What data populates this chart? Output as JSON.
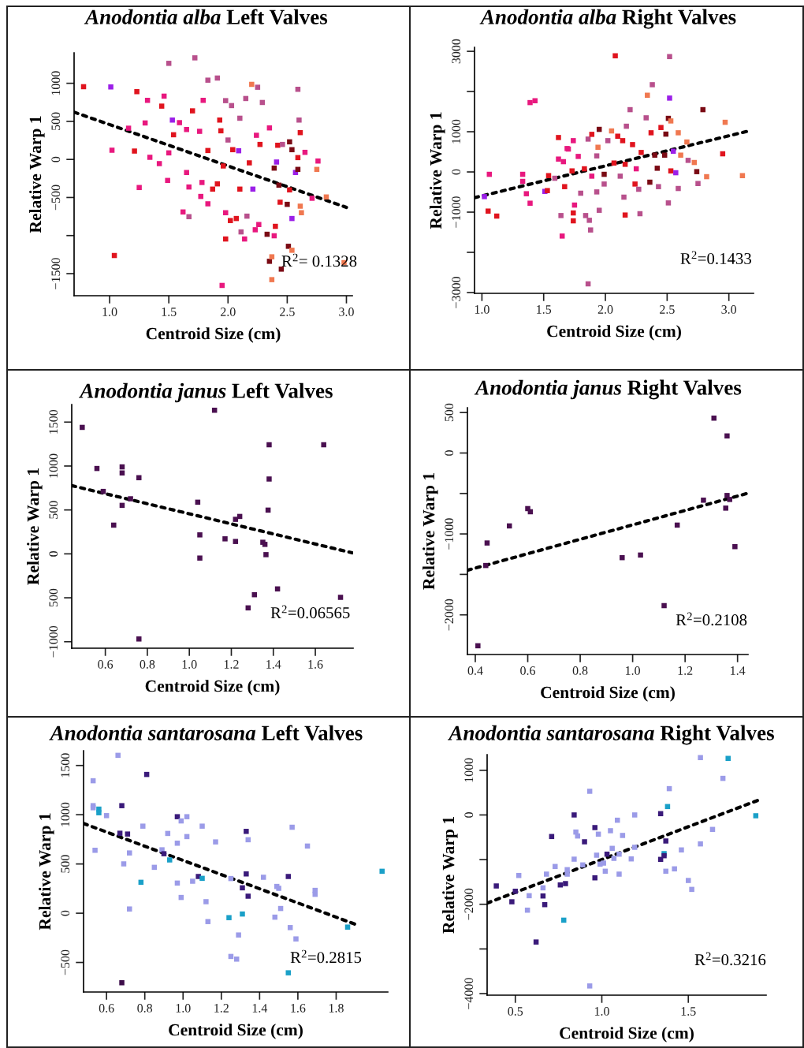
{
  "chart_data": [
    {
      "type": "scatter",
      "title": "Anodontia alba Left Valves",
      "xlabel": "Centroid Size (cm)",
      "ylabel": "Relative Warp 1",
      "marker": "square",
      "xlim": [
        0.7,
        3.05
      ],
      "ylim": [
        -1790,
        1400
      ],
      "xticks": [
        {
          "value": 1,
          "label": "1.0"
        },
        1.5,
        {
          "value": 2,
          "label": "2.0"
        },
        2.5,
        {
          "value": 3,
          "label": "3.0"
        }
      ],
      "yticks": [
        {
          "value": -1500,
          "label": "−1500"
        },
        {
          "value": -1000,
          "label": null
        },
        {
          "value": -500,
          "label": "−500"
        },
        0,
        500,
        1000
      ],
      "annotations": [
        "R$^{2}$= 0.1328"
      ],
      "series": [
        {
          "x": [
            0.78,
            1.01,
            1.02,
            1.04,
            1.23,
            1.21,
            1.16,
            1.25,
            1.32,
            1.3,
            1.34,
            1.42,
            1.46,
            1.44,
            1.5,
            1.49,
            1.53,
            1.54,
            1.5,
            1.59,
            1.65,
            1.65,
            1.67,
            1.62,
            1.67,
            1.7,
            1.72,
            1.79,
            1.76,
            1.83,
            1.91,
            1.83,
            1.78,
            1.77,
            1.83,
            1.87,
            1.93,
            1.94,
            1.96,
            1.91,
            1.98,
            1.98,
            1.95,
            1.98,
            2.03,
            2.0,
            2.04,
            2.02,
            2.07,
            2.1,
            2.09,
            2.1,
            2.11,
            2.14,
            2.16,
            2.15,
            2.2,
            2.25,
            2.18,
            2.21,
            2.24,
            2.27,
            2.29,
            2.23,
            2.26,
            2.35,
            2.33,
            2.35,
            2.37,
            2.37,
            2.39,
            2.41,
            2.39,
            2.4,
            2.42,
            2.43,
            2.45,
            2.44,
            2.46,
            2.5,
            2.52,
            2.54,
            2.52,
            2.51,
            2.54,
            2.54,
            2.57,
            2.59,
            2.6,
            2.59,
            2.59,
            2.61,
            2.61,
            2.62,
            2.65,
            2.71,
            2.75,
            2.76,
            2.83,
            2.98
          ],
          "values": [
            955,
            952,
            121,
            -1262,
            890,
            110,
            410,
            -369,
            776,
            479,
            28,
            -55,
            831,
            700,
            1262,
            -276,
            517,
            324,
            86,
            483,
            393,
            -172,
            -362,
            -690,
            -752,
            638,
            1334,
            776,
            369,
            1041,
            1069,
            117,
            -303,
            -486,
            -583,
            -390,
            517,
            376,
            -86,
            -321,
            772,
            -1045,
            -1655,
            -700,
            707,
            255,
            128,
            -803,
            -776,
            541,
            114,
            -390,
            -952,
            -1045,
            -745,
            800,
            986,
            948,
            -45,
            -390,
            317,
            197,
            748,
            -924,
            -855,
            414,
            -983,
            -1338,
            -1279,
            -1579,
            -114,
            -34,
            -1003,
            -879,
            186,
            -338,
            -1441,
            -562,
            197,
            -590,
            -400,
            128,
            231,
            -1141,
            -1193,
            -776,
            -172,
            921,
            517,
            24,
            -131,
            352,
            -614,
            -700,
            93,
            -510,
            -131,
            -21,
            -493,
            -1355
          ],
          "colors": [
            "#e0141e",
            "#9b1fe8",
            "#e8187e",
            "#e0141e",
            "#e0141e",
            "#e0141e",
            "#e8187e",
            "#e8187e",
            "#e8187e",
            "#e8187e",
            "#e8187e",
            "#e8187e",
            "#e8187e",
            "#e0141e",
            "#b8508c",
            "#e8187e",
            "#9b1fe8",
            "#e0141e",
            "#e8187e",
            "#e8187e",
            "#e8187e",
            "#e8187e",
            "#e8187e",
            "#e8187e",
            "#b8508c",
            "#e0141e",
            "#b8508c",
            "#e8187e",
            "#e8187e",
            "#b8508c",
            "#b8508c",
            "#e0141e",
            "#e8187e",
            "#e8187e",
            "#e8187e",
            "#e0141e",
            "#e0141e",
            "#e0141e",
            "#e0141e",
            "#e0141e",
            "#b8508c",
            "#e0141e",
            "#e8187e",
            "#e8187e",
            "#b8508c",
            "#b8508c",
            "#e0141e",
            "#e0141e",
            "#e0141e",
            "#b8508c",
            "#9b1fe8",
            "#e0141e",
            "#b8508c",
            "#e8187e",
            "#b8508c",
            "#b8508c",
            "#f07850",
            "#b8508c",
            "#e0141e",
            "#9b1fe8",
            "#e8187e",
            "#e0141e",
            "#b8508c",
            "#e8187e",
            "#e8187e",
            "#e8187e",
            "#7a0a14",
            "#7a0a14",
            "#f07850",
            "#f07850",
            "#7a0a14",
            "#9b1fe8",
            "#e8187e",
            "#e0141e",
            "#e0141e",
            "#7a0a14",
            "#7a0a14",
            "#e0141e",
            "#b8508c",
            "#7a0a14",
            "#e0141e",
            "#7a0a14",
            "#7a0a14",
            "#7a0a14",
            "#f07850",
            "#9b1fe8",
            "#9b1fe8",
            "#b8508c",
            "#b8508c",
            "#e0141e",
            "#7a0a14",
            "#e0141e",
            "#f07850",
            "#f07850",
            "#e8187e",
            "#e8187e",
            "#f07850",
            "#e8187e",
            "#f07850",
            "#f07850"
          ]
        },
        {
          "type": "line",
          "x": [
            0.7,
            3.0
          ],
          "values": [
            621,
            -630
          ],
          "color": "#000000",
          "line_style": "dashed",
          "marker": "none"
        }
      ]
    },
    {
      "type": "scatter",
      "title": "Anodontia alba Right Valves",
      "xlabel": "Centroid Size (cm)",
      "ylabel": "Relative Warp 1",
      "marker": "square",
      "xlim": [
        0.94,
        3.2
      ],
      "ylim": [
        -3020,
        3100
      ],
      "xticks": [
        {
          "value": 1,
          "label": "1.0"
        },
        1.5,
        {
          "value": 2,
          "label": "2.0"
        },
        2.5,
        {
          "value": 3,
          "label": "3.0"
        }
      ],
      "yticks": [
        {
          "value": -3000,
          "label": "−3000"
        },
        {
          "value": -2000,
          "label": null
        },
        {
          "value": -1000,
          "label": "−1000"
        },
        0,
        1000,
        {
          "value": 2000,
          "label": null
        },
        3000
      ],
      "annotations": [
        "R$^{2}$=0.1433"
      ],
      "series": [
        {
          "x": [
            1.02,
            1.06,
            1.05,
            1.12,
            1.33,
            1.33,
            1.36,
            1.39,
            1.39,
            1.43,
            1.51,
            1.54,
            1.53,
            1.59,
            1.62,
            1.62,
            1.64,
            1.65,
            1.66,
            1.67,
            1.69,
            1.7,
            1.74,
            1.73,
            1.74,
            1.74,
            1.75,
            1.78,
            1.8,
            1.83,
            1.84,
            1.86,
            1.86,
            1.87,
            1.88,
            1.89,
            1.89,
            1.93,
            1.93,
            1.95,
            1.95,
            1.94,
            1.99,
            1.99,
            2.02,
            2.05,
            2.07,
            2.08,
            2.1,
            2.12,
            2.14,
            2.15,
            2.16,
            2.16,
            2.17,
            2.2,
            2.22,
            2.24,
            2.25,
            2.27,
            2.28,
            2.29,
            2.33,
            2.34,
            2.36,
            2.38,
            2.37,
            2.4,
            2.42,
            2.43,
            2.45,
            2.48,
            2.49,
            2.51,
            2.52,
            2.52,
            2.51,
            2.53,
            2.53,
            2.57,
            2.59,
            2.55,
            2.59,
            2.61,
            2.66,
            2.67,
            2.72,
            2.74,
            2.75,
            2.79,
            2.82,
            2.95,
            2.97,
            3.11
          ],
          "values": [
            -614,
            -59,
            -974,
            -1098,
            -59,
            -235,
            -542,
            -778,
            1725,
            1771,
            -484,
            -92,
            -464,
            -157,
            856,
            320,
            -1085,
            -1595,
            255,
            -366,
            582,
            569,
            778,
            26,
            -1020,
            -1216,
            -824,
            386,
            -529,
            78,
            -1085,
            817,
            -2784,
            -1203,
            -1444,
            935,
            -105,
            399,
            -497,
            -954,
            1059,
            614,
            -59,
            -301,
            778,
            1020,
            222,
            2889,
            889,
            -105,
            778,
            -627,
            -1072,
            190,
            1137,
            1549,
            680,
            -301,
            78,
            -431,
            -1039,
            484,
            1346,
            1908,
            -255,
            2170,
            974,
            418,
            92,
            -366,
            1105,
            418,
            941,
            1333,
            1837,
            2869,
            -771,
            26,
            1268,
            -20,
            -412,
            516,
            974,
            418,
            745,
            288,
            235,
            7,
            -288,
            1549,
            -118,
            451,
            1235,
            -92
          ],
          "colors": [
            "#9b1fe8",
            "#e8187e",
            "#e0141e",
            "#e0141e",
            "#e8187e",
            "#e8187e",
            "#e8187e",
            "#e8187e",
            "#e8187e",
            "#e8187e",
            "#9b1fe8",
            "#e0141e",
            "#e0141e",
            "#b8508c",
            "#e0141e",
            "#e8187e",
            "#b8508c",
            "#e8187e",
            "#e8187e",
            "#e0141e",
            "#e8187e",
            "#e8187e",
            "#e8187e",
            "#e0141e",
            "#e0141e",
            "#e0141e",
            "#e8187e",
            "#e8187e",
            "#b8508c",
            "#e0141e",
            "#b8508c",
            "#b8508c",
            "#b8508c",
            "#b8508c",
            "#b8508c",
            "#e0141e",
            "#e8187e",
            "#b8508c",
            "#b8508c",
            "#b8508c",
            "#7a0a14",
            "#f07850",
            "#7a0a14",
            "#b8508c",
            "#b8508c",
            "#f07850",
            "#e0141e",
            "#e0141e",
            "#e0141e",
            "#b8508c",
            "#e0141e",
            "#b8508c",
            "#e0141e",
            "#e0141e",
            "#b8508c",
            "#b8508c",
            "#e0141e",
            "#e0141e",
            "#e8187e",
            "#b8508c",
            "#b8508c",
            "#e0141e",
            "#b8508c",
            "#f07850",
            "#7a0a14",
            "#b8508c",
            "#e0141e",
            "#7a0a14",
            "#7a0a14",
            "#b8508c",
            "#e0141e",
            "#7a0a14",
            "#7a0a14",
            "#7a0a14",
            "#9b1fe8",
            "#b8508c",
            "#b8508c",
            "#e0141e",
            "#f07850",
            "#9b1fe8",
            "#b8508c",
            "#9b1fe8",
            "#f07850",
            "#f07850",
            "#f07850",
            "#b8508c",
            "#f07850",
            "#7a0a14",
            "#b8508c",
            "#7a0a14",
            "#f07850",
            "#e0141e",
            "#f07850",
            "#f07850"
          ]
        },
        {
          "type": "line",
          "x": [
            0.94,
            3.18
          ],
          "values": [
            -640,
            1033
          ],
          "color": "#000000",
          "line_style": "dashed",
          "marker": "none"
        }
      ]
    },
    {
      "type": "scatter",
      "title": "Anodontia janus Left Valves",
      "xlabel": "Centroid Size (cm)",
      "ylabel": "Relative Warp 1",
      "marker": "square",
      "xlim": [
        0.44,
        1.78
      ],
      "ylim": [
        -1074,
        1700
      ],
      "xticks": [
        0.6,
        0.8,
        {
          "value": 1,
          "label": "1.0"
        },
        1.2,
        1.4,
        1.6
      ],
      "yticks": [
        {
          "value": -1000,
          "label": "−1000"
        },
        {
          "value": -500,
          "label": "500"
        },
        0,
        500,
        1000,
        1500
      ],
      "annotations": [
        "R$^{2}$=0.06565"
      ],
      "series": [
        {
          "x": [
            0.49,
            0.56,
            0.59,
            0.64,
            0.68,
            0.68,
            0.68,
            0.72,
            0.76,
            0.76,
            1.04,
            1.05,
            1.05,
            1.12,
            1.17,
            1.22,
            1.22,
            1.24,
            1.28,
            1.31,
            1.35,
            1.36,
            1.365,
            1.375,
            1.38,
            1.38,
            1.42,
            1.64,
            1.72
          ],
          "values": [
            1440,
            972,
            711,
            327,
            552,
            990,
            921,
            627,
            867,
            -969,
            588,
            216,
            -48,
            1635,
            171,
            393,
            141,
            426,
            -615,
            -465,
            132,
            108,
            -9,
            498,
            852,
            1242,
            -399,
            1242,
            -495
          ],
          "color": "#4a1050"
        },
        {
          "type": "line",
          "x": [
            0.44,
            1.775
          ],
          "values": [
            777,
            12
          ],
          "color": "#000000",
          "line_style": "dashed",
          "marker": "none"
        }
      ]
    },
    {
      "type": "scatter",
      "title": "Anodontia janus Right Valves",
      "xlabel": "Centroid Size (cm)",
      "ylabel": "Relative Warp 1",
      "marker": "square",
      "xlim": [
        0.37,
        1.44
      ],
      "ylim": [
        -2490,
        560
      ],
      "xticks": [
        0.4,
        0.6,
        0.8,
        {
          "value": 1,
          "label": "1.0"
        },
        1.2,
        1.4
      ],
      "yticks": [
        {
          "value": -2000,
          "label": "−2000"
        },
        {
          "value": -1500,
          "label": null
        },
        {
          "value": -1000,
          "label": "−1000"
        },
        {
          "value": -500,
          "label": null
        },
        0,
        500
      ],
      "annotations": [
        "R$^{2}$=0.2108"
      ],
      "series": [
        {
          "x": [
            0.41,
            0.44,
            0.445,
            0.53,
            0.6,
            0.61,
            0.96,
            1.03,
            1.12,
            1.17,
            1.27,
            1.31,
            1.355,
            1.36,
            1.36,
            1.37,
            1.39
          ],
          "values": [
            -2382,
            -1390,
            -1112,
            -901,
            -687,
            -726,
            -1293,
            -1261,
            -1886,
            -891,
            -583,
            431,
            -681,
            -525,
            211,
            -574,
            -1157
          ],
          "color": "#4a1050"
        },
        {
          "type": "line",
          "x": [
            0.37,
            1.437
          ],
          "values": [
            -1449,
            -499
          ],
          "color": "#000000",
          "line_style": "dashed",
          "marker": "none"
        }
      ]
    },
    {
      "type": "scatter",
      "title": "Anodontia santarosana Left Valves",
      "xlabel": "Centroid Size (cm)",
      "ylabel": "Relative Warp 1",
      "marker": "square",
      "xlim": [
        0.48,
        2.07
      ],
      "ylim": [
        -800,
        1650
      ],
      "xticks": [
        0.6,
        0.8,
        {
          "value": 1,
          "label": "1.0"
        },
        1.2,
        1.4,
        1.6,
        1.8
      ],
      "yticks": [
        {
          "value": -500,
          "label": "−500"
        },
        0,
        500,
        1000,
        1500
      ],
      "annotations": [
        "R$^{2}$=0.2815"
      ],
      "series": [
        {
          "x": [
            0.53,
            0.53,
            0.53,
            0.54,
            0.56,
            0.56,
            0.6,
            0.66,
            0.67,
            0.68,
            0.68,
            0.69,
            0.71,
            0.72,
            0.72,
            0.78,
            0.79,
            0.81,
            0.85,
            0.89,
            0.9,
            0.92,
            0.93,
            0.97,
            0.97,
            0.97,
            0.99,
            0.99,
            1.02,
            1.02,
            1.05,
            1.08,
            1.1,
            1.1,
            1.12,
            1.13,
            1.17,
            1.24,
            1.25,
            1.25,
            1.28,
            1.29,
            1.31,
            1.31,
            1.33,
            1.33,
            1.34,
            1.34,
            1.42,
            1.48,
            1.49,
            1.5,
            1.51,
            1.55,
            1.55,
            1.56,
            1.57,
            1.59,
            1.65,
            1.69,
            1.69,
            1.86,
            2.04
          ],
          "values": [
            1345,
            1092,
            1071,
            639,
            1057,
            1020,
            991,
            1603,
            812,
            1092,
            -706,
            501,
            804,
            612,
            43,
            314,
            884,
            1409,
            466,
            644,
            604,
            810,
            541,
            980,
            711,
            306,
            937,
            160,
            980,
            778,
            325,
            373,
            354,
            884,
            117,
            -85,
            724,
            -45,
            352,
            -439,
            -466,
            -221,
            -8,
            258,
            399,
            831,
            746,
            173,
            365,
            -40,
            272,
            253,
            48,
            373,
            -605,
            -146,
            873,
            -261,
            682,
            192,
            232,
            -141,
            426
          ],
          "colors": [
            "#9b9be8",
            "#9b9be8",
            "#9b9be8",
            "#9b9be8",
            "#1aa0c8",
            "#1aa0c8",
            "#9b9be8",
            "#9b9be8",
            "#3a1a7a",
            "#3a1a7a",
            "#3d0d4a",
            "#9b9be8",
            "#3a1a7a",
            "#9b9be8",
            "#9b9be8",
            "#1aa0c8",
            "#9b9be8",
            "#3a1a7a",
            "#9b9be8",
            "#9b9be8",
            "#3a1a7a",
            "#9b9be8",
            "#1aa0c8",
            "#3a1a7a",
            "#9b9be8",
            "#9b9be8",
            "#9b9be8",
            "#9b9be8",
            "#9b9be8",
            "#9b9be8",
            "#9b9be8",
            "#3a1a7a",
            "#1aa0c8",
            "#9b9be8",
            "#9b9be8",
            "#9b9be8",
            "#9b9be8",
            "#1aa0c8",
            "#9b9be8",
            "#9b9be8",
            "#9b9be8",
            "#9b9be8",
            "#1aa0c8",
            "#3a1a7a",
            "#3a1a7a",
            "#3a1a7a",
            "#9b9be8",
            "#3a1a7a",
            "#9b9be8",
            "#9b9be8",
            "#9b9be8",
            "#9b9be8",
            "#9b9be8",
            "#3a1a7a",
            "#1aa0c8",
            "#9b9be8",
            "#9b9be8",
            "#9b9be8",
            "#9b9be8",
            "#9b9be8",
            "#9b9be8",
            "#1aa0c8",
            "#1aa0c8"
          ]
        },
        {
          "type": "line",
          "x": [
            0.48,
            1.9
          ],
          "values": [
            911,
            -112
          ],
          "color": "#000000",
          "line_style": "dashed",
          "marker": "none"
        }
      ]
    },
    {
      "type": "scatter",
      "title": "Anodontia santarosana Right Valves",
      "xlabel": "Centroid Size (cm)",
      "ylabel": "Relative Warp 1",
      "marker": "square",
      "xlim": [
        0.337,
        1.95
      ],
      "ylim": [
        -4035,
        1350
      ],
      "xticks": [
        0.5,
        {
          "value": 1,
          "label": "1.0"
        },
        1.5
      ],
      "yticks": [
        {
          "value": -4000,
          "label": "−4000"
        },
        {
          "value": -3000,
          "label": null
        },
        {
          "value": -2000,
          "label": "−2000"
        },
        {
          "value": -1000,
          "label": null
        },
        0,
        1000
      ],
      "annotations": [
        "R$^{2}$=0.3216"
      ],
      "series": [
        {
          "x": [
            0.39,
            0.48,
            0.5,
            0.52,
            0.57,
            0.58,
            0.62,
            0.66,
            0.66,
            0.67,
            0.68,
            0.71,
            0.73,
            0.76,
            0.78,
            0.79,
            0.8,
            0.8,
            0.84,
            0.84,
            0.85,
            0.86,
            0.89,
            0.9,
            0.93,
            0.93,
            0.96,
            0.96,
            0.97,
            0.98,
            0.99,
            1.01,
            1.02,
            1.03,
            1.05,
            1.06,
            1.07,
            1.09,
            1.1,
            1.1,
            1.12,
            1.17,
            1.19,
            1.19,
            1.34,
            1.34,
            1.36,
            1.36,
            1.37,
            1.37,
            1.38,
            1.39,
            1.42,
            1.46,
            1.5,
            1.52,
            1.57,
            1.57,
            1.64,
            1.7,
            1.73,
            1.89
          ],
          "values": [
            -1590,
            -1944,
            -1708,
            -1355,
            -2132,
            -1808,
            -2845,
            -1814,
            -1632,
            -2008,
            -1325,
            -483,
            -1154,
            -1567,
            -2356,
            -1537,
            -1225,
            -1325,
            -990,
            0,
            -383,
            -471,
            -1119,
            -601,
            530,
            -3829,
            -283,
            -1408,
            -901,
            -430,
            -1101,
            -1078,
            -1260,
            -878,
            -353,
            -748,
            -972,
            -118,
            -878,
            -1325,
            -459,
            -984,
            -724,
            0,
            29,
            -995,
            -866,
            -913,
            -583,
            -1260,
            188,
            589,
            -1207,
            -783,
            -1467,
            -1667,
            -648,
            1284,
            -324,
            819,
            1266,
            -18
          ],
          "colors": [
            "#3a1a7a",
            "#3a1a7a",
            "#3a1a7a",
            "#9b9be8",
            "#9b9be8",
            "#9b9be8",
            "#3a1a7a",
            "#3a1a7a",
            "#9b9be8",
            "#3a1a7a",
            "#9b9be8",
            "#3a1a7a",
            "#9b9be8",
            "#3a1a7a",
            "#1aa0c8",
            "#3a1a7a",
            "#9b9be8",
            "#9b9be8",
            "#9b9be8",
            "#3a1a7a",
            "#9b9be8",
            "#9b9be8",
            "#9b9be8",
            "#3a1a7a",
            "#9b9be8",
            "#9b9be8",
            "#3a1a7a",
            "#3a1a7a",
            "#9b9be8",
            "#9b9be8",
            "#9b9be8",
            "#9b9be8",
            "#9b9be8",
            "#3a1a7a",
            "#9b9be8",
            "#9b9be8",
            "#9b9be8",
            "#9b9be8",
            "#9b9be8",
            "#9b9be8",
            "#9b9be8",
            "#9b9be8",
            "#9b9be8",
            "#9b9be8",
            "#3a1a7a",
            "#3a1a7a",
            "#1aa0c8",
            "#3a1a7a",
            "#3a1a7a",
            "#9b9be8",
            "#1aa0c8",
            "#9b9be8",
            "#9b9be8",
            "#9b9be8",
            "#9b9be8",
            "#9b9be8",
            "#9b9be8",
            "#9b9be8",
            "#9b9be8",
            "#9b9be8",
            "#1aa0c8",
            "#1aa0c8"
          ]
        },
        {
          "type": "line",
          "x": [
            0.337,
            1.9
          ],
          "values": [
            -1973,
            324
          ],
          "color": "#000000",
          "line_style": "dashed",
          "marker": "none"
        }
      ]
    }
  ]
}
